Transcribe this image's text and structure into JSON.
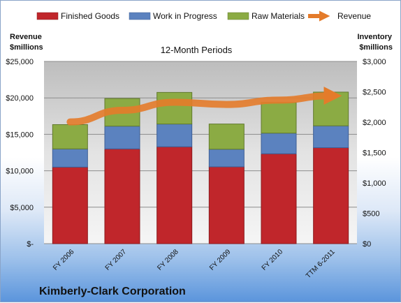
{
  "chart_data": {
    "type": "bar",
    "subtitle": "12-Month Periods",
    "company": "Kimberly-Clark Corporation",
    "left_axis_title": [
      "Revenue",
      "$millions"
    ],
    "right_axis_title": [
      "Inventory",
      "$millions"
    ],
    "categories": [
      "FY 2006",
      "FY 2007",
      "FY 2008",
      "FY 2009",
      "FY 2010",
      "TTM 6-2011"
    ],
    "stacked": true,
    "series": [
      {
        "name": "Finished Goods",
        "axis": "right",
        "color": "#c0262b",
        "values": [
          1260,
          1560,
          1595,
          1265,
          1480,
          1580
        ]
      },
      {
        "name": "Work in Progress",
        "axis": "right",
        "color": "#5b82bf",
        "values": [
          300,
          375,
          375,
          290,
          340,
          360
        ]
      },
      {
        "name": "Raw Materials",
        "axis": "right",
        "color": "#8bab44",
        "values": [
          400,
          455,
          520,
          415,
          505,
          555
        ]
      },
      {
        "name": "Revenue",
        "axis": "left",
        "type": "line",
        "color": "#e47b2a",
        "values": [
          16700,
          18300,
          19400,
          19100,
          19700,
          20300
        ]
      }
    ],
    "left_axis": {
      "min": 0,
      "max": 25000,
      "ticks": [
        "$-",
        "$5,000",
        "$10,000",
        "$15,000",
        "$20,000",
        "$25,000"
      ]
    },
    "right_axis": {
      "min": 0,
      "max": 3000,
      "ticks": [
        "$0",
        "$500",
        "$1,000",
        "$1,500",
        "$2,000",
        "$2,500",
        "$3,000"
      ]
    },
    "legend_position": "top",
    "grid": true
  }
}
